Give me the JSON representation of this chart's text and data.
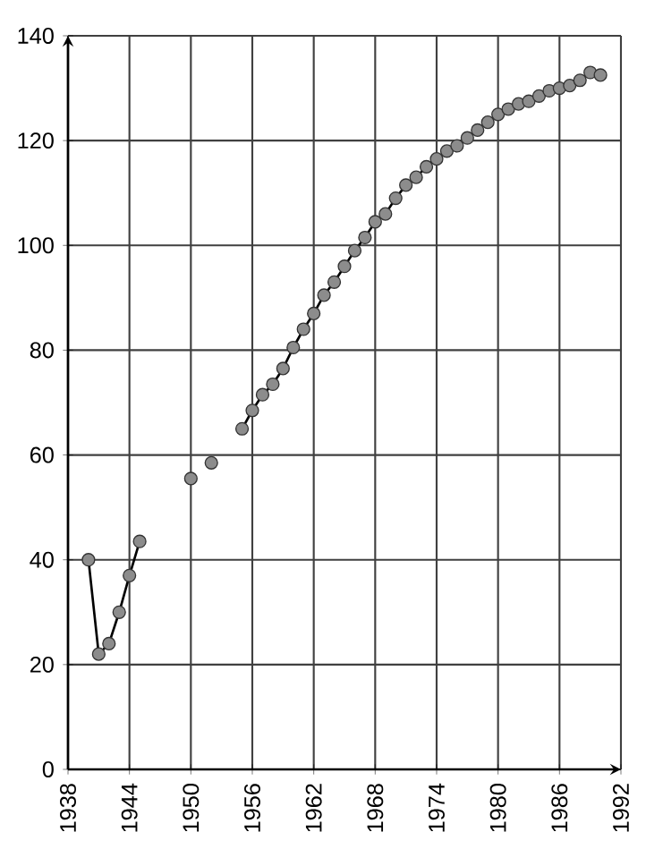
{
  "chart_data": {
    "type": "line",
    "x": [
      1940,
      1941,
      1942,
      1943,
      1944,
      1945,
      1946,
      1950,
      1951,
      1952,
      1953,
      1955,
      1956,
      1957,
      1958,
      1959,
      1960,
      1961,
      1962,
      1963,
      1964,
      1965,
      1966,
      1967,
      1968,
      1969,
      1970,
      1971,
      1972,
      1973,
      1974,
      1975,
      1976,
      1977,
      1978,
      1979,
      1980,
      1981,
      1982,
      1983,
      1984,
      1985,
      1986,
      1987,
      1988,
      1989,
      1990
    ],
    "values": [
      40,
      22,
      24,
      30,
      37,
      43.5,
      null,
      55.5,
      null,
      58.5,
      null,
      65,
      68.5,
      71.5,
      73.5,
      76.5,
      80.5,
      84,
      87,
      90.5,
      93,
      96,
      99,
      101.5,
      104.5,
      106,
      109,
      111.5,
      113,
      115,
      116.5,
      118,
      119,
      120.5,
      122,
      123.5,
      125,
      126,
      127,
      127.5,
      128.5,
      129.5,
      130,
      130.5,
      131.5,
      133,
      132.5
    ],
    "color": "#8c8c8c",
    "marker": "circle",
    "line_style": "solid",
    "grid": true,
    "xlim": [
      1938,
      1992
    ],
    "xticks": [
      1938,
      1944,
      1950,
      1956,
      1962,
      1968,
      1974,
      1980,
      1986,
      1992
    ],
    "ylim": [
      0,
      140
    ],
    "yticks": [
      0,
      20,
      40,
      60,
      80,
      100,
      120,
      140
    ]
  }
}
